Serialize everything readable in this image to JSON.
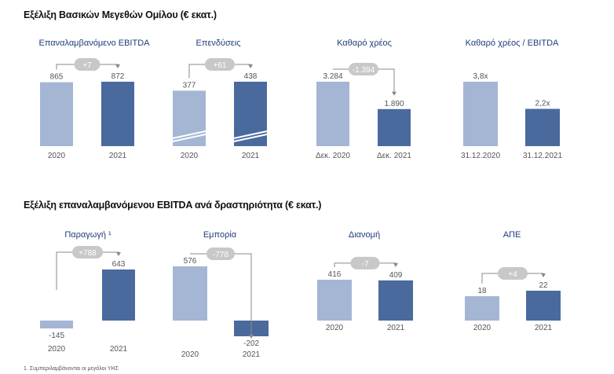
{
  "section1": {
    "title": "Εξέλιξη Βασικών Μεγεθών Ομίλου (€ εκατ.)"
  },
  "section2": {
    "title": "Εξέλιξη επαναλαμβανόμενου EBITDA ανά δραστηριότητα  (€ εκατ.)"
  },
  "footnote": "1. Συμπεριλαμβάνονται οι μεγάλοι ΥΗΣ",
  "colors": {
    "light": "#a4b6d4",
    "dark": "#4a6a9e",
    "label": "#555555",
    "badge": "#c8c8c8",
    "line": "#8a8a8a",
    "title": "#1f3d7a"
  },
  "chart_data": [
    {
      "type": "bar",
      "title": "Επαναλαμβανόμενο EBITDA",
      "categories": [
        "2020",
        "2021"
      ],
      "values": [
        865,
        872
      ],
      "value_labels": [
        "865",
        "872"
      ],
      "change_label": "+7"
    },
    {
      "type": "bar",
      "title": "Επενδύσεις",
      "categories": [
        "2020",
        "2021"
      ],
      "values": [
        377,
        438
      ],
      "value_labels": [
        "377",
        "438"
      ],
      "change_label": "+61",
      "axis_break": true
    },
    {
      "type": "bar",
      "title": "Καθαρό χρέος",
      "categories": [
        "Δεκ. 2020",
        "Δεκ. 2021"
      ],
      "values": [
        3284,
        1890
      ],
      "value_labels": [
        "3.284",
        "1.890"
      ],
      "change_label": "-1.394"
    },
    {
      "type": "bar",
      "title": "Καθαρό χρέος / EBITDA",
      "categories": [
        "31.12.2020",
        "31.12.2021"
      ],
      "values": [
        3.8,
        2.2
      ],
      "value_labels": [
        "3,8x",
        "2,2x"
      ]
    },
    {
      "type": "bar",
      "title": "Παραγωγή ¹",
      "categories": [
        "2020",
        "2021"
      ],
      "values": [
        -145,
        643
      ],
      "value_labels": [
        "-145",
        "643"
      ],
      "change_label": "+788"
    },
    {
      "type": "bar",
      "title": "Εμπορία",
      "categories": [
        "2020",
        "2021"
      ],
      "values": [
        576,
        -202
      ],
      "value_labels": [
        "576",
        "-202"
      ],
      "change_label": "-778"
    },
    {
      "type": "bar",
      "title": "Διανομή",
      "categories": [
        "2020",
        "2021"
      ],
      "values": [
        416,
        409
      ],
      "value_labels": [
        "416",
        "409"
      ],
      "change_label": "-7"
    },
    {
      "type": "bar",
      "title": "ΑΠΕ",
      "categories": [
        "2020",
        "2021"
      ],
      "values": [
        18,
        22
      ],
      "value_labels": [
        "18",
        "22"
      ],
      "change_label": "+4"
    }
  ]
}
